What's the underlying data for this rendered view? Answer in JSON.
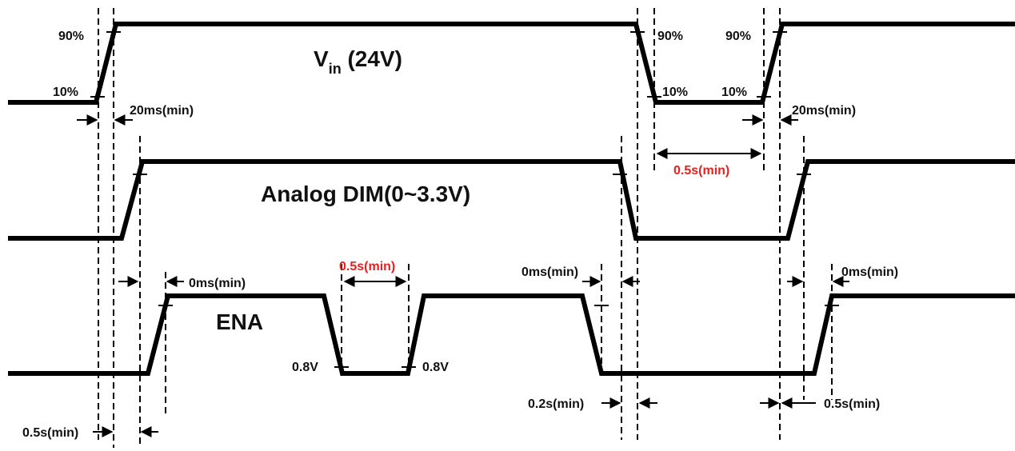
{
  "signals": {
    "vin": {
      "name": "V",
      "sub": "in",
      "suffix": " (24V)"
    },
    "analog": {
      "name": "Analog DIM(0~3.3V)"
    },
    "ena": {
      "name": "ENA"
    }
  },
  "labels": {
    "pct90": "90%",
    "pct10": "10%",
    "t20ms": "20ms(min)",
    "t0ms": "0ms(min)",
    "t05s": "0.5s(min)",
    "t02s": "0.2s(min)",
    "v08": "0.8V"
  },
  "colors": {
    "line": "#000000",
    "text": "#111111",
    "highlight": "#e8201e"
  }
}
